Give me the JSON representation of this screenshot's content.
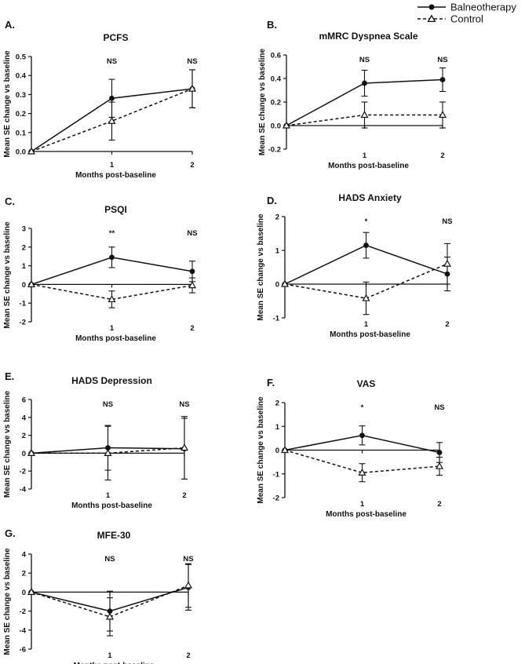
{
  "legend": {
    "position": "top-right",
    "entries": [
      {
        "label": "Balneotherapy",
        "marker": "circle",
        "line": "solid"
      },
      {
        "label": "Control",
        "marker": "triangle",
        "line": "dashed"
      }
    ]
  },
  "chart_data": [
    {
      "panel_label": "A.",
      "type": "line",
      "title": "PCFS",
      "xlabel": "Months post-baseline",
      "ylabel": "Mean SE change vs baseline",
      "x": [
        0,
        1,
        2
      ],
      "x_tick_labels": [
        "1",
        "2"
      ],
      "ylim": [
        0,
        0.5
      ],
      "yticks": [
        "0.0",
        "0.1",
        "0.2",
        "0.3",
        "0.4",
        "0.5"
      ],
      "significance": [
        "NS",
        "NS"
      ],
      "series": [
        {
          "name": "Balneotherapy",
          "values": [
            0,
            0.28,
            0.33
          ],
          "errors": [
            0,
            0.1,
            0.1
          ]
        },
        {
          "name": "Control",
          "values": [
            0,
            0.16,
            0.33
          ],
          "errors": [
            0,
            0.1,
            0.1
          ]
        }
      ]
    },
    {
      "panel_label": "B.",
      "type": "line",
      "title": "mMRC Dyspnea Scale",
      "xlabel": "Months post-baseline",
      "ylabel": "Mean SE change vs baseline",
      "x": [
        0,
        1,
        2
      ],
      "x_tick_labels": [
        "1",
        "2"
      ],
      "ylim": [
        -0.2,
        0.6
      ],
      "yticks": [
        "-0.2",
        "0.0",
        "0.2",
        "0.4",
        "0.6"
      ],
      "significance": [
        "NS",
        "NS"
      ],
      "series": [
        {
          "name": "Balneotherapy",
          "values": [
            0,
            0.36,
            0.39
          ],
          "errors": [
            0,
            0.11,
            0.1
          ]
        },
        {
          "name": "Control",
          "values": [
            0,
            0.09,
            0.09
          ],
          "errors": [
            0,
            0.11,
            0.11
          ]
        }
      ]
    },
    {
      "panel_label": "C.",
      "type": "line",
      "title": "PSQI",
      "xlabel": "Months post-baseline",
      "ylabel": "Mean SE change vs baseline",
      "x": [
        0,
        1,
        2
      ],
      "x_tick_labels": [
        "1",
        "2"
      ],
      "ylim": [
        -2,
        3
      ],
      "yticks": [
        "-2",
        "-1",
        "0",
        "1",
        "2",
        "3"
      ],
      "significance": [
        "**",
        "NS"
      ],
      "series": [
        {
          "name": "Balneotherapy",
          "values": [
            0,
            1.45,
            0.7
          ],
          "errors": [
            0,
            0.55,
            0.55
          ]
        },
        {
          "name": "Control",
          "values": [
            0,
            -0.8,
            -0.05
          ],
          "errors": [
            0,
            0.45,
            0.4
          ]
        }
      ]
    },
    {
      "panel_label": "D.",
      "type": "line",
      "title": "HADS Anxiety",
      "xlabel": "Months post-baseline",
      "ylabel": "Mean SE change vs baseline",
      "x": [
        0,
        1,
        2
      ],
      "x_tick_labels": [
        "1",
        "2"
      ],
      "ylim": [
        -1,
        2
      ],
      "yticks": [
        "-1",
        "0",
        "1",
        "2"
      ],
      "significance": [
        "*",
        "NS"
      ],
      "series": [
        {
          "name": "Balneotherapy",
          "values": [
            0,
            1.15,
            0.3
          ],
          "errors": [
            0,
            0.38,
            0.5
          ]
        },
        {
          "name": "Control",
          "values": [
            0,
            -0.42,
            0.6
          ],
          "errors": [
            0,
            0.48,
            0.6
          ]
        }
      ]
    },
    {
      "panel_label": "E.",
      "type": "line",
      "title": "HADS Depression",
      "xlabel": "Months post-baseline",
      "ylabel": "Mean SE change vs baseline",
      "x": [
        0,
        1,
        2
      ],
      "x_tick_labels": [
        "1",
        "2"
      ],
      "ylim": [
        -4,
        6
      ],
      "yticks": [
        "-4",
        "-2",
        "0",
        "2",
        "4",
        "6"
      ],
      "significance": [
        "NS",
        "NS"
      ],
      "series": [
        {
          "name": "Balneotherapy",
          "values": [
            0,
            0.6,
            0.5
          ],
          "errors": [
            0,
            2.5,
            3.4
          ]
        },
        {
          "name": "Control",
          "values": [
            0,
            0,
            0.6
          ],
          "errors": [
            0,
            3.0,
            3.5
          ]
        }
      ]
    },
    {
      "panel_label": "F.",
      "type": "line",
      "title": "VAS",
      "xlabel": "Months post-baseline",
      "ylabel": "Mean SE change vs baseline",
      "x": [
        0,
        1,
        2
      ],
      "x_tick_labels": [
        "1",
        "2"
      ],
      "ylim": [
        -2,
        2
      ],
      "yticks": [
        "-2",
        "-1",
        "0",
        "1",
        "2"
      ],
      "significance": [
        "*",
        "NS"
      ],
      "series": [
        {
          "name": "Balneotherapy",
          "values": [
            0,
            0.62,
            -0.1
          ],
          "errors": [
            0,
            0.4,
            0.42
          ]
        },
        {
          "name": "Control",
          "values": [
            0,
            -0.95,
            -0.68
          ],
          "errors": [
            0,
            0.38,
            0.38
          ]
        }
      ]
    },
    {
      "panel_label": "G.",
      "type": "line",
      "title": "MFE-30",
      "xlabel": "Months post-baseline",
      "ylabel": "Mean SE change vs baseline",
      "x": [
        0,
        1,
        2
      ],
      "x_tick_labels": [
        "1",
        "2"
      ],
      "ylim": [
        -6,
        4
      ],
      "yticks": [
        "-6",
        "-4",
        "-2",
        "0",
        "2",
        "4"
      ],
      "significance": [
        "NS",
        "NS"
      ],
      "series": [
        {
          "name": "Balneotherapy",
          "values": [
            0,
            -2.0,
            0.5
          ],
          "errors": [
            0,
            2.1,
            2.4
          ]
        },
        {
          "name": "Control",
          "values": [
            0,
            -2.6,
            0.7
          ],
          "errors": [
            0,
            2.0,
            2.3
          ]
        }
      ]
    }
  ]
}
